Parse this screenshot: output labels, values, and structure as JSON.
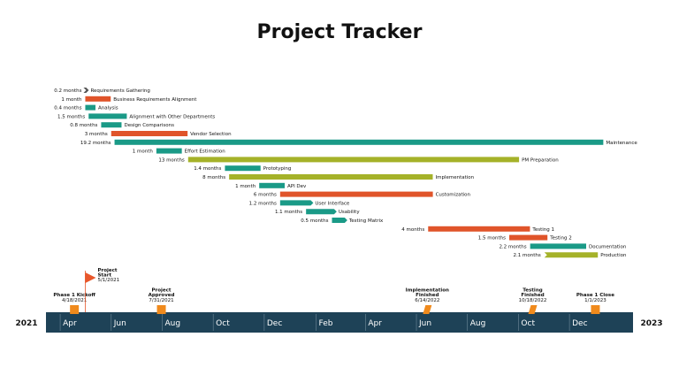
{
  "title": "Project Tracker",
  "colors": {
    "teal": "#1a9a87",
    "orange": "#e0542a",
    "olive": "#a5b229",
    "axis_band": "#1e4257",
    "milestone": "#f08a1c",
    "flag": "#e8572b",
    "text": "#111111"
  },
  "chart_data": {
    "type": "gantt",
    "time_unit": "months",
    "timeline": {
      "start_label": "2021",
      "end_label": "2023",
      "start": "2021-03-15",
      "end": "2023-02-15",
      "ticks": [
        {
          "label": "Apr",
          "date": "2021-04-01"
        },
        {
          "label": "Jun",
          "date": "2021-06-01"
        },
        {
          "label": "Aug",
          "date": "2021-08-01"
        },
        {
          "label": "Oct",
          "date": "2021-10-01"
        },
        {
          "label": "Dec",
          "date": "2021-12-01"
        },
        {
          "label": "Feb",
          "date": "2022-02-01"
        },
        {
          "label": "Apr",
          "date": "2022-04-01"
        },
        {
          "label": "Jun",
          "date": "2022-06-01"
        },
        {
          "label": "Aug",
          "date": "2022-08-01"
        },
        {
          "label": "Oct",
          "date": "2022-10-01"
        },
        {
          "label": "Dec",
          "date": "2022-12-01"
        }
      ]
    },
    "tasks": [
      {
        "name": "Requirements Gathering",
        "duration": "0.2 months",
        "start": "2021-05-01",
        "months": 0.2,
        "color": "teal",
        "shape": "chevron"
      },
      {
        "name": "Business Requirements Alignment",
        "duration": "1 month",
        "start": "2021-05-01",
        "months": 1.0,
        "color": "orange",
        "shape": "bar"
      },
      {
        "name": "Analysis",
        "duration": "0.4 months",
        "start": "2021-05-01",
        "months": 0.4,
        "color": "teal",
        "shape": "bar"
      },
      {
        "name": "Alignment with Other Departments",
        "duration": "1.5 months",
        "start": "2021-05-05",
        "months": 1.5,
        "color": "teal",
        "shape": "bar"
      },
      {
        "name": "Design Comparisons",
        "duration": "0.8 months",
        "start": "2021-05-20",
        "months": 0.8,
        "color": "teal",
        "shape": "bar"
      },
      {
        "name": "Vendor Selection",
        "duration": "3 months",
        "start": "2021-06-01",
        "months": 3.0,
        "color": "orange",
        "shape": "bar"
      },
      {
        "name": "Maintenance",
        "duration": "19.2 months",
        "start": "2021-06-05",
        "months": 19.2,
        "color": "teal",
        "shape": "bar"
      },
      {
        "name": "Effort Estimation",
        "duration": "1 month",
        "start": "2021-07-25",
        "months": 1.0,
        "color": "teal",
        "shape": "bar"
      },
      {
        "name": "PM Preparation",
        "duration": "13 months",
        "start": "2021-09-01",
        "months": 13.0,
        "color": "olive",
        "shape": "bar"
      },
      {
        "name": "Prototyping",
        "duration": "1.4 months",
        "start": "2021-10-15",
        "months": 1.4,
        "color": "teal",
        "shape": "bar"
      },
      {
        "name": "Implementation",
        "duration": "8 months",
        "start": "2021-10-20",
        "months": 8.0,
        "color": "olive",
        "shape": "bar"
      },
      {
        "name": "API Dev",
        "duration": "1 month",
        "start": "2021-11-25",
        "months": 1.0,
        "color": "teal",
        "shape": "bar"
      },
      {
        "name": "Customization",
        "duration": "6 months",
        "start": "2021-12-20",
        "months": 6.0,
        "color": "orange",
        "shape": "bar"
      },
      {
        "name": "User Interface",
        "duration": "1.2 months",
        "start": "2021-12-20",
        "months": 1.2,
        "color": "teal",
        "shape": "arrow"
      },
      {
        "name": "Usability",
        "duration": "1.1 months",
        "start": "2022-01-20",
        "months": 1.1,
        "color": "teal",
        "shape": "arrow"
      },
      {
        "name": "Testing Matrix",
        "duration": "0.5 months",
        "start": "2022-02-20",
        "months": 0.5,
        "color": "teal",
        "shape": "arrow"
      },
      {
        "name": "Testing 1",
        "duration": "4 months",
        "start": "2022-06-15",
        "months": 4.0,
        "color": "orange",
        "shape": "bar"
      },
      {
        "name": "Testing 2",
        "duration": "1.5 months",
        "start": "2022-09-20",
        "months": 1.5,
        "color": "orange",
        "shape": "bar"
      },
      {
        "name": "Documentation",
        "duration": "2.2 months",
        "start": "2022-10-15",
        "months": 2.2,
        "color": "teal",
        "shape": "bar"
      },
      {
        "name": "Production",
        "duration": "2.1 months",
        "start": "2022-11-01",
        "months": 2.1,
        "color": "olive",
        "shape": "chevron-bar"
      }
    ],
    "milestones": [
      {
        "name": "Phase 1 Kickoff",
        "date_label": "4/18/2021",
        "date": "2021-04-18",
        "marker": "square"
      },
      {
        "name": "Project Start",
        "date_label": "5/1/2021",
        "date": "2021-05-01",
        "marker": "flag"
      },
      {
        "name": "Project Approved",
        "date_label": "7/31/2021",
        "date": "2021-07-31",
        "marker": "square"
      },
      {
        "name": "Implementation Finished",
        "date_label": "6/14/2022",
        "date": "2022-06-14",
        "marker": "parallelogram"
      },
      {
        "name": "Testing Finished",
        "date_label": "10/18/2022",
        "date": "2022-10-18",
        "marker": "parallelogram"
      },
      {
        "name": "Phase 1 Close",
        "date_label": "1/1/2023",
        "date": "2023-01-01",
        "marker": "square"
      }
    ]
  }
}
